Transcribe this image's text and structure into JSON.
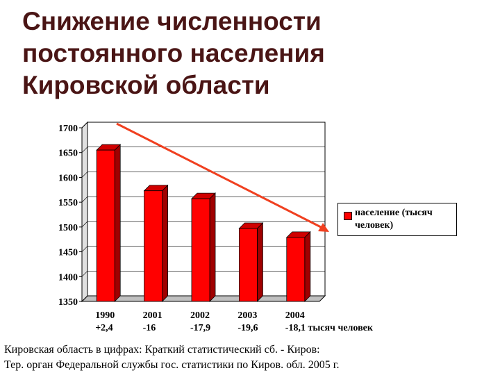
{
  "title": "Снижение численности постоянного населения Кировской области",
  "chart_data": {
    "type": "bar",
    "categories": [
      "1990",
      "2001",
      "2002",
      "2003",
      "2004"
    ],
    "annotations": [
      "+2,4",
      "-16",
      "-17,9",
      "-19,6",
      "-18,1 тысяч человек"
    ],
    "series": [
      {
        "name": "население (тысяч человек)",
        "color": "#ff0000",
        "values": [
          1655,
          1573,
          1557,
          1497,
          1479
        ]
      }
    ],
    "ylim": [
      1350,
      1700
    ],
    "yticks": [
      1350,
      1400,
      1450,
      1500,
      1550,
      1600,
      1650,
      1700
    ],
    "legend": "right"
  },
  "footer": [
    "Кировская область в цифрах: Краткий статистический сб. - Киров:",
    "Тер. орган Федеральной службы гос. статистики по Киров. обл. 2005 г."
  ]
}
